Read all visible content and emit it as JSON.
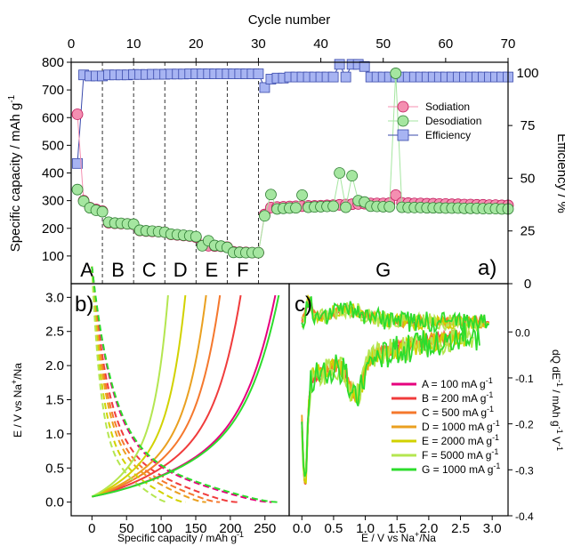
{
  "chart_data": [
    {
      "type": "scatter",
      "panel_label": "a)",
      "xlabel_top": "Cycle number",
      "ylabel_left": "Specific capacity / mAh g",
      "ylabel_left_sup": "-1",
      "ylabel_right": "Efficiency / %",
      "xlim": [
        0,
        70
      ],
      "ylim_left": [
        0,
        800
      ],
      "ylim_right": [
        0,
        105
      ],
      "x_ticks": [
        "0",
        "10",
        "20",
        "30",
        "40",
        "50",
        "60",
        "70"
      ],
      "y_left_ticks": [
        "100",
        "200",
        "300",
        "400",
        "500",
        "600",
        "700",
        "800"
      ],
      "y_right_ticks": [
        "0",
        "25",
        "50",
        "75",
        "100"
      ],
      "regions": [
        {
          "label": "A",
          "x_start": 0,
          "x_end": 5
        },
        {
          "label": "B",
          "x_start": 5,
          "x_end": 10
        },
        {
          "label": "C",
          "x_start": 10,
          "x_end": 15
        },
        {
          "label": "D",
          "x_start": 15,
          "x_end": 20
        },
        {
          "label": "E",
          "x_start": 20,
          "x_end": 25
        },
        {
          "label": "F",
          "x_start": 25,
          "x_end": 30
        },
        {
          "label": "G",
          "x_start": 30,
          "x_end": 70
        }
      ],
      "legend": [
        "Sodiation",
        "Desodiation",
        "Efficiency"
      ],
      "legend_position": "upper-right",
      "colors": {
        "sodiation": "#f48fb1",
        "sodiation_edge": "#c2185b",
        "desodiation": "#a5e6a0",
        "desodiation_edge": "#2e7d32",
        "efficiency": "#a7b4f2",
        "efficiency_edge": "#3949ab"
      },
      "series": [
        {
          "name": "Sodiation",
          "axis": "left",
          "x": [
            1,
            2,
            3,
            4,
            5,
            6,
            7,
            8,
            9,
            10,
            11,
            12,
            13,
            14,
            15,
            16,
            17,
            18,
            19,
            20,
            21,
            22,
            23,
            24,
            25,
            26,
            27,
            28,
            29,
            30,
            31,
            32,
            33,
            34,
            35,
            36,
            37,
            38,
            39,
            40,
            41,
            42,
            43,
            44,
            45,
            46,
            47,
            48,
            49,
            50,
            51,
            52,
            53,
            54,
            55,
            56,
            57,
            58,
            59,
            60,
            61,
            62,
            63,
            64,
            65,
            66,
            67,
            68,
            69,
            70
          ],
          "y": [
            612,
            300,
            275,
            268,
            262,
            220,
            218,
            217,
            216,
            214,
            192,
            190,
            189,
            188,
            186,
            178,
            176,
            174,
            172,
            168,
            138,
            137,
            136,
            135,
            132,
            115,
            114,
            113,
            112,
            112,
            250,
            275,
            277,
            278,
            279,
            280,
            280,
            281,
            281,
            282,
            283,
            284,
            285,
            286,
            287,
            288,
            289,
            290,
            290,
            290,
            291,
            320,
            292,
            291,
            290,
            290,
            289,
            289,
            288,
            288,
            287,
            287,
            286,
            286,
            285,
            285,
            284,
            284,
            283,
            283
          ]
        },
        {
          "name": "Desodiation",
          "axis": "left",
          "x": [
            1,
            2,
            3,
            4,
            5,
            6,
            7,
            8,
            9,
            10,
            11,
            12,
            13,
            14,
            15,
            16,
            17,
            18,
            19,
            20,
            21,
            22,
            23,
            24,
            25,
            26,
            27,
            28,
            29,
            30,
            31,
            32,
            33,
            34,
            35,
            36,
            37,
            38,
            39,
            40,
            41,
            42,
            43,
            44,
            45,
            46,
            47,
            48,
            49,
            50,
            51,
            52,
            53,
            54,
            55,
            56,
            57,
            58,
            59,
            60,
            61,
            62,
            63,
            64,
            65,
            66,
            67,
            68,
            69,
            70
          ],
          "y": [
            340,
            298,
            274,
            265,
            260,
            222,
            219,
            218,
            216,
            215,
            193,
            191,
            190,
            188,
            186,
            179,
            177,
            175,
            173,
            170,
            137,
            155,
            138,
            136,
            131,
            113,
            113,
            112,
            112,
            112,
            245,
            322,
            270,
            272,
            273,
            274,
            320,
            276,
            277,
            278,
            279,
            280,
            400,
            276,
            390,
            300,
            295,
            280,
            279,
            278,
            278,
            760,
            276,
            275,
            275,
            275,
            274,
            274,
            274,
            273,
            273,
            273,
            272,
            272,
            272,
            271,
            271,
            271,
            270,
            270
          ]
        },
        {
          "name": "Efficiency",
          "axis": "right",
          "x": [
            1,
            2,
            3,
            4,
            5,
            6,
            7,
            8,
            9,
            10,
            11,
            12,
            13,
            14,
            15,
            16,
            17,
            18,
            19,
            20,
            21,
            22,
            23,
            24,
            25,
            26,
            27,
            28,
            29,
            30,
            31,
            32,
            33,
            34,
            35,
            36,
            37,
            38,
            39,
            40,
            41,
            42,
            43,
            44,
            45,
            46,
            47,
            48,
            49,
            50,
            51,
            52,
            53,
            54,
            55,
            56,
            57,
            58,
            59,
            60,
            61,
            62,
            63,
            64,
            65,
            66,
            67,
            68,
            69,
            70
          ],
          "y": [
            57,
            99,
            98.5,
            98.5,
            98.5,
            99,
            99,
            99,
            99,
            99.2,
            99.2,
            99.2,
            99.3,
            99.3,
            99.3,
            99.4,
            99.4,
            99.4,
            99.5,
            99.5,
            99.5,
            99.5,
            99.5,
            99.5,
            99.5,
            99.5,
            99.5,
            99.5,
            99.5,
            99.5,
            93,
            97,
            97.5,
            97.5,
            98,
            98,
            98,
            98,
            98,
            98,
            98,
            98,
            104,
            98,
            104,
            104,
            103,
            98,
            98,
            98,
            98,
            98,
            98,
            98,
            98,
            98,
            98,
            98,
            98,
            98,
            98,
            98,
            98,
            98,
            98,
            98,
            98,
            98,
            98,
            98
          ]
        }
      ]
    },
    {
      "type": "line",
      "panel_label": "b)",
      "xlabel": "Specific capacity / mAh g",
      "xlabel_sup": "-1",
      "ylabel": "E / V vs Na",
      "ylabel_sup1": "+",
      "ylabel_tail": "/Na",
      "xlim": [
        -30,
        285
      ],
      "ylim": [
        -0.2,
        3.2
      ],
      "x_ticks": [
        "0",
        "50",
        "100",
        "150",
        "200",
        "250"
      ],
      "y_ticks": [
        "0.0",
        "0.5",
        "1.0",
        "1.5",
        "2.0",
        "2.5",
        "3.0"
      ],
      "series": [
        {
          "name": "A",
          "color": "#e6007e",
          "charge_cap": 265,
          "discharge_cap": 260
        },
        {
          "name": "B",
          "color": "#f03c3c",
          "charge_cap": 215,
          "discharge_cap": 210
        },
        {
          "name": "C",
          "color": "#f5782d",
          "charge_cap": 185,
          "discharge_cap": 185
        },
        {
          "name": "D",
          "color": "#eaa020",
          "charge_cap": 165,
          "discharge_cap": 165
        },
        {
          "name": "E",
          "color": "#d2d200",
          "charge_cap": 135,
          "discharge_cap": 135
        },
        {
          "name": "F",
          "color": "#b4e650",
          "charge_cap": 110,
          "discharge_cap": 110
        },
        {
          "name": "G",
          "color": "#2ddc2d",
          "charge_cap": 270,
          "discharge_cap": 270
        }
      ]
    },
    {
      "type": "line",
      "panel_label": "c)",
      "xlabel": "E / V vs Na",
      "xlabel_sup": "+",
      "xlabel_tail": "/Na",
      "ylabel": "dQ dE",
      "ylabel_sup1": "-1",
      "ylabel_mid": " / mAh g",
      "ylabel_sup2": "-1",
      "ylabel_mid2": " V",
      "ylabel_sup3": "-1",
      "xlim": [
        -0.2,
        3.25
      ],
      "ylim": [
        -0.4,
        0.105
      ],
      "x_ticks": [
        "0.0",
        "0.5",
        "1.0",
        "1.5",
        "2.0",
        "2.5",
        "3.0"
      ],
      "y_ticks": [
        "0.0",
        "-0.1",
        "-0.2",
        "-0.3",
        "-0.4"
      ],
      "legend_position": "lower-right",
      "legend": [
        {
          "label": "A = 100 mA g",
          "sup": "-1",
          "color": "#e6007e"
        },
        {
          "label": "B = 200 mA g",
          "sup": "-1",
          "color": "#f03c3c"
        },
        {
          "label": "C = 500 mA g",
          "sup": "-1",
          "color": "#f5782d"
        },
        {
          "label": "D = 1000 mA g",
          "sup": "-1",
          "color": "#eaa020"
        },
        {
          "label": "E = 2000 mA g",
          "sup": "-1",
          "color": "#d2d200"
        },
        {
          "label": "F = 5000 mA g",
          "sup": "-1",
          "color": "#b4e650"
        },
        {
          "label": "G = 1000 mA g",
          "sup": "-1",
          "color": "#2ddc2d"
        }
      ]
    }
  ]
}
